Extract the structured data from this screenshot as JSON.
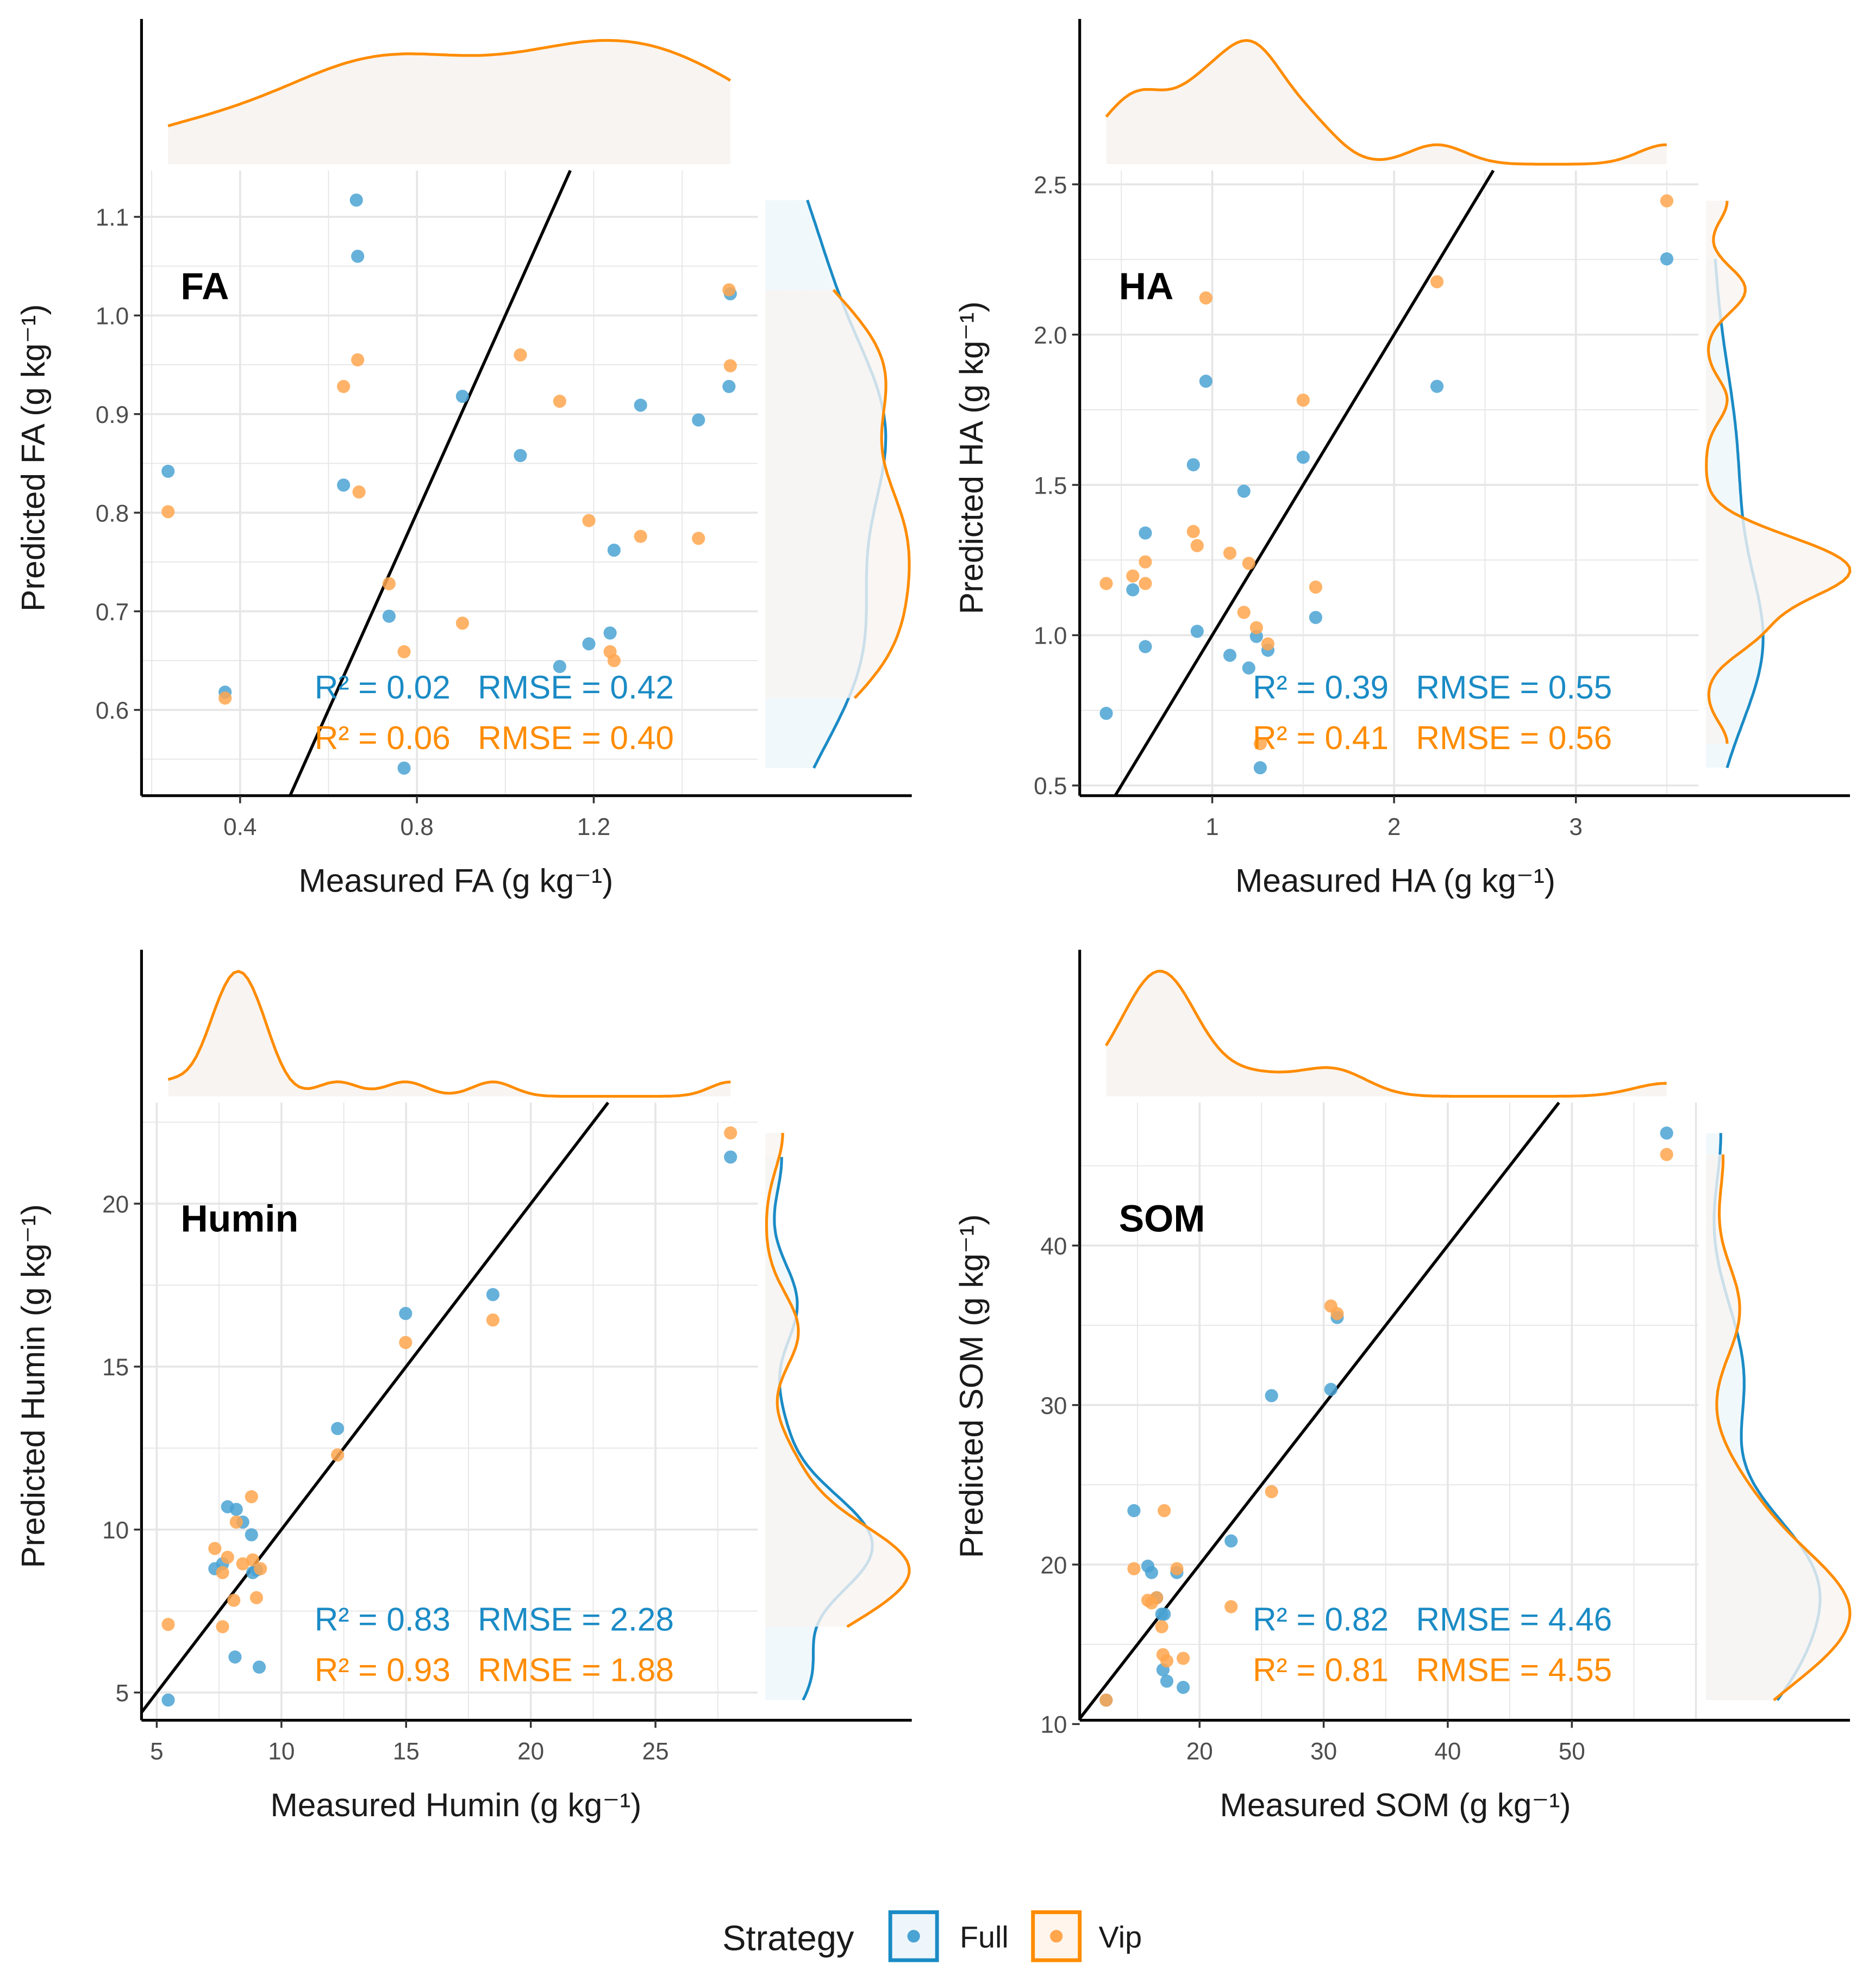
{
  "colors": {
    "Full": "#1a8bc5",
    "Vip": "#ff8c00",
    "Full_point": "#4aa3d3",
    "Vip_point": "#ffa64d",
    "density_fill": "#f8f4f1",
    "grid": "#e6e6e6",
    "line": "#000000"
  },
  "legend": {
    "title": "Strategy",
    "items": [
      "Full",
      "Vip"
    ]
  },
  "chart_data": [
    {
      "type": "scatter",
      "panel_label": "FA",
      "xlabel": "Measured FA (g kg⁻¹)",
      "ylabel": "Predicted FA (g kg⁻¹)",
      "xlim": [
        0.177,
        1.571
      ],
      "ylim": [
        0.513,
        1.147
      ],
      "xticks": [
        0.4,
        0.8,
        1.2
      ],
      "xtick_labels": [
        "0.4",
        "0.8",
        "1.2"
      ],
      "yticks": [
        0.6,
        0.7,
        0.8,
        0.9,
        1.0,
        1.1
      ],
      "ytick_labels": [
        "0.6",
        "0.7",
        "0.8",
        "0.9",
        "1.0",
        "1.1"
      ],
      "reference_line": "y = x",
      "stats": [
        {
          "series": "Full",
          "text": "R² = 0.02   RMSE = 0.42"
        },
        {
          "series": "Vip",
          "text": "R² = 0.06   RMSE = 0.40"
        }
      ],
      "series": [
        {
          "name": "Full",
          "x": [
            0.237,
            0.366,
            0.663,
            0.666,
            0.634,
            0.737,
            0.771,
            0.903,
            1.034,
            1.123,
            1.189,
            1.237,
            1.246,
            1.306,
            1.437,
            1.506,
            1.509
          ],
          "y": [
            0.842,
            0.618,
            1.117,
            1.06,
            0.828,
            0.695,
            0.541,
            0.918,
            0.858,
            0.644,
            0.667,
            0.678,
            0.762,
            0.909,
            0.894,
            0.928,
            1.022
          ]
        },
        {
          "name": "Vip",
          "x": [
            0.237,
            0.366,
            0.634,
            0.666,
            0.669,
            0.737,
            0.771,
            0.903,
            1.034,
            1.123,
            1.189,
            1.237,
            1.246,
            1.306,
            1.437,
            1.506,
            1.509
          ],
          "y": [
            0.801,
            0.612,
            0.928,
            0.955,
            0.821,
            0.728,
            0.659,
            0.688,
            0.96,
            0.913,
            0.792,
            0.659,
            0.65,
            0.776,
            0.774,
            1.026,
            0.949
          ]
        }
      ]
    },
    {
      "type": "scatter",
      "panel_label": "HA",
      "xlabel": "Measured HA (g kg⁻¹)",
      "ylabel": "Predicted HA (g kg⁻¹)",
      "xlim": [
        0.271,
        3.674
      ],
      "ylim": [
        0.466,
        2.546
      ],
      "xticks": [
        1,
        2,
        3
      ],
      "xtick_labels": [
        "1",
        "2",
        "3"
      ],
      "yticks": [
        0.5,
        1.0,
        1.5,
        2.0,
        2.5
      ],
      "ytick_labels": [
        "0.5",
        "1.0",
        "1.5",
        "2.0",
        "2.5"
      ],
      "reference_line": "y = x",
      "stats": [
        {
          "series": "Full",
          "text": "R² = 0.39   RMSE = 0.55"
        },
        {
          "series": "Vip",
          "text": "R² = 0.41   RMSE = 0.56"
        }
      ],
      "series": [
        {
          "name": "Full",
          "x": [
            0.417,
            0.563,
            0.632,
            0.632,
            0.896,
            0.917,
            0.965,
            1.097,
            1.174,
            1.201,
            1.243,
            1.264,
            1.306,
            1.5,
            1.569,
            2.236,
            3.5
          ],
          "y": [
            0.74,
            1.151,
            1.34,
            0.962,
            1.567,
            1.013,
            1.845,
            0.933,
            1.479,
            0.891,
            0.996,
            0.559,
            0.95,
            1.592,
            1.059,
            1.828,
            2.252
          ]
        },
        {
          "name": "Vip",
          "x": [
            0.417,
            0.563,
            0.632,
            0.632,
            0.896,
            0.917,
            0.965,
            1.097,
            1.174,
            1.201,
            1.243,
            1.264,
            1.306,
            1.5,
            1.569,
            2.236,
            3.5
          ],
          "y": [
            1.172,
            1.197,
            1.244,
            1.172,
            1.345,
            1.298,
            2.122,
            1.273,
            1.076,
            1.239,
            1.025,
            0.639,
            0.971,
            1.782,
            1.16,
            2.176,
            2.445
          ]
        }
      ]
    },
    {
      "type": "scatter",
      "panel_label": "Humin",
      "xlabel": "Measured Humin (g kg⁻¹)",
      "ylabel": "Predicted Humin (g kg⁻¹)",
      "xlim": [
        4.39,
        29.1
      ],
      "ylim": [
        4.15,
        23.1
      ],
      "xticks": [
        5,
        10,
        15,
        20,
        25
      ],
      "xtick_labels": [
        "5",
        "10",
        "15",
        "20",
        "25"
      ],
      "yticks": [
        5,
        10,
        15,
        20
      ],
      "ytick_labels": [
        "5",
        "10",
        "15",
        "20"
      ],
      "reference_line": "y = x",
      "stats": [
        {
          "series": "Full",
          "text": "R² = 0.83   RMSE = 2.28"
        },
        {
          "series": "Vip",
          "text": "R² = 0.93   RMSE = 1.88"
        }
      ],
      "series": [
        {
          "name": "Full",
          "x": [
            5.46,
            7.33,
            7.64,
            7.84,
            8.19,
            8.45,
            8.8,
            8.85,
            9.0,
            8.14,
            9.11,
            12.25,
            14.98,
            18.48,
            28.01
          ],
          "y": [
            4.77,
            8.8,
            8.95,
            10.7,
            10.62,
            10.23,
            9.84,
            8.68,
            8.76,
            6.09,
            5.78,
            13.1,
            16.63,
            17.21,
            21.43
          ]
        },
        {
          "name": "Vip",
          "x": [
            5.46,
            7.33,
            7.64,
            7.84,
            8.09,
            8.19,
            8.45,
            8.8,
            8.85,
            9.0,
            9.16,
            7.64,
            12.25,
            14.98,
            18.48,
            28.01
          ],
          "y": [
            7.09,
            9.42,
            7.02,
            9.15,
            7.83,
            10.23,
            8.95,
            11.01,
            9.07,
            7.91,
            8.8,
            8.68,
            12.29,
            15.74,
            16.43,
            22.17
          ]
        }
      ]
    },
    {
      "type": "scatter",
      "panel_label": "SOM",
      "xlabel": "Measured SOM (g kg⁻¹)",
      "ylabel": "Predicted SOM (g kg⁻¹)",
      "xlim": [
        10.34,
        60.2
      ],
      "ylim": [
        10.24,
        48.96
      ],
      "xticks": [
        20,
        30,
        40,
        50
      ],
      "xtick_labels": [
        "20",
        "30",
        "40",
        "50"
      ],
      "yticks": [
        10,
        20,
        30,
        40
      ],
      "ytick_labels": [
        "10",
        "20",
        "30",
        "40"
      ],
      "reference_line": "y = x",
      "stats": [
        {
          "series": "Full",
          "text": "R² = 0.82   RMSE = 4.46"
        },
        {
          "series": "Vip",
          "text": "R² = 0.81   RMSE = 4.55"
        }
      ],
      "series": [
        {
          "name": "Full",
          "x": [
            12.47,
            14.71,
            15.83,
            16.13,
            16.54,
            16.95,
            17.15,
            17.05,
            17.36,
            18.17,
            18.68,
            22.54,
            25.8,
            30.58,
            31.09,
            57.64
          ],
          "y": [
            11.5,
            23.38,
            19.9,
            19.5,
            17.92,
            16.89,
            16.89,
            13.4,
            12.69,
            19.5,
            12.3,
            21.48,
            30.59,
            30.98,
            35.49,
            47.05
          ]
        },
        {
          "name": "Vip",
          "x": [
            12.47,
            14.71,
            15.83,
            16.13,
            16.54,
            16.95,
            17.15,
            17.05,
            17.36,
            18.17,
            18.68,
            22.54,
            25.8,
            30.58,
            31.09,
            57.64
          ],
          "y": [
            11.5,
            19.74,
            17.76,
            17.6,
            17.92,
            16.1,
            23.38,
            14.35,
            13.96,
            19.74,
            14.12,
            17.36,
            24.57,
            36.21,
            35.73,
            45.71
          ]
        }
      ]
    }
  ]
}
